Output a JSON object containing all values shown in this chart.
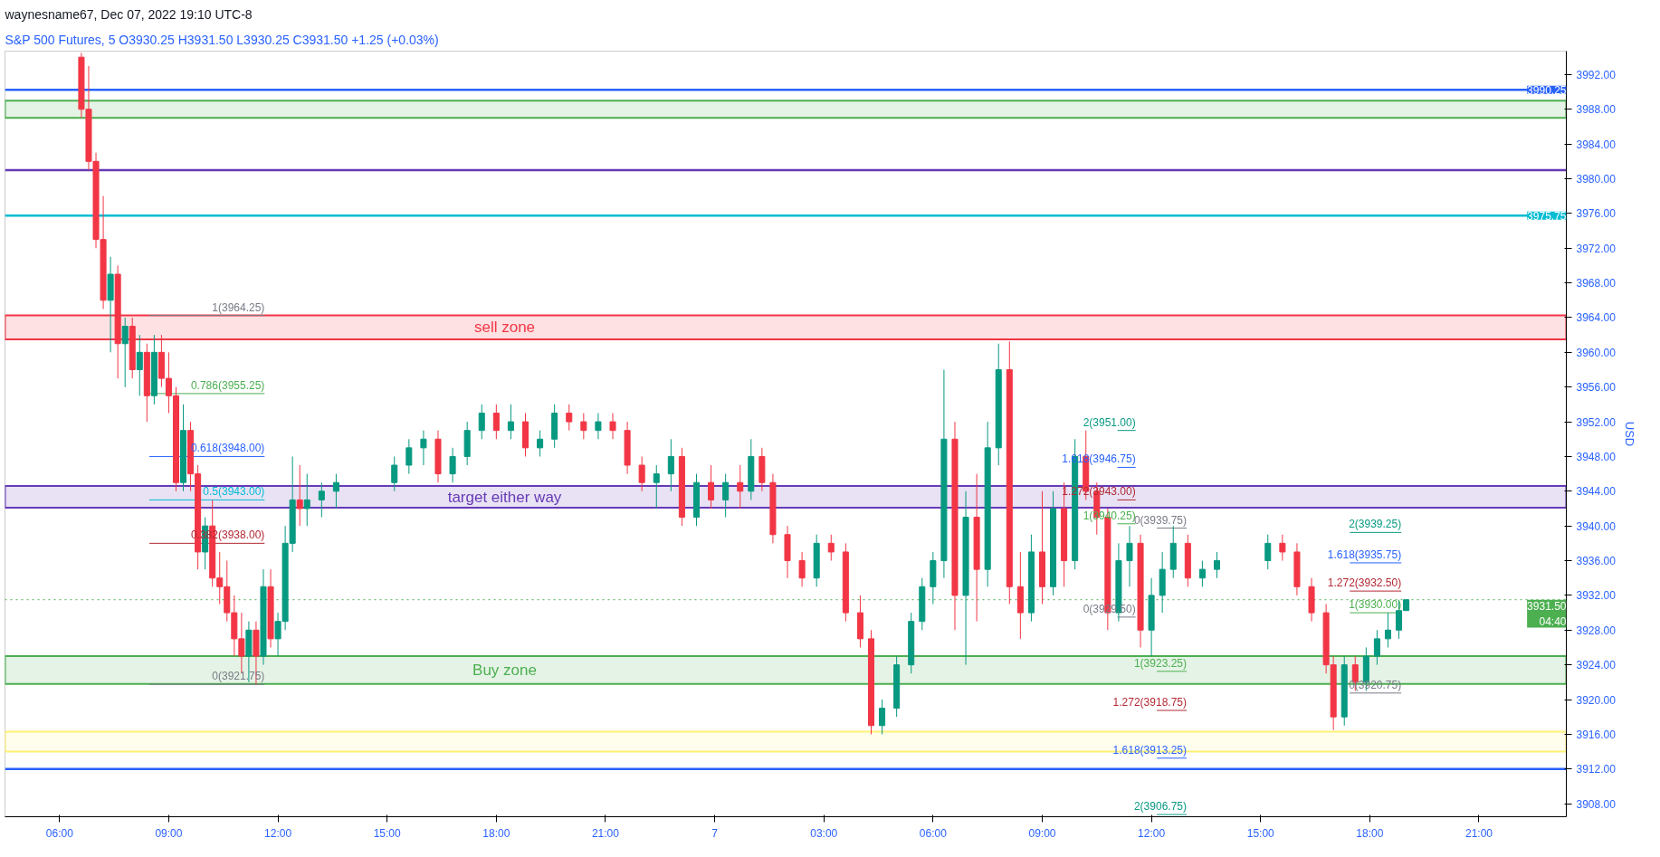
{
  "chart_data": {
    "type": "candlestick",
    "title": "waynesname67, Dec 07, 2022 19:10 UTC-8",
    "subtitle": "S&P 500 Futures, 5  O3930.25  H3931.50  L3930.25  C3931.50  +1.25 (+0.03%)",
    "x": [
      "2022-12-06T06:36",
      "2022-12-06T06:48",
      "2022-12-06T07:00",
      "2022-12-06T07:12",
      "2022-12-06T07:24",
      "2022-12-06T07:36",
      "2022-12-06T07:48",
      "2022-12-06T08:00",
      "2022-12-06T08:12",
      "2022-12-06T08:24",
      "2022-12-06T08:36",
      "2022-12-06T08:48",
      "2022-12-06T09:00",
      "2022-12-06T09:12",
      "2022-12-06T09:24",
      "2022-12-06T09:36",
      "2022-12-06T09:48",
      "2022-12-06T10:00",
      "2022-12-06T10:12",
      "2022-12-06T10:24",
      "2022-12-06T10:36",
      "2022-12-06T10:48",
      "2022-12-06T11:00",
      "2022-12-06T11:12",
      "2022-12-06T11:24",
      "2022-12-06T11:36",
      "2022-12-06T11:48",
      "2022-12-06T12:00",
      "2022-12-06T12:12",
      "2022-12-06T12:24",
      "2022-12-06T12:36",
      "2022-12-06T12:48",
      "2022-12-06T13:12",
      "2022-12-06T13:36",
      "2022-12-06T15:12",
      "2022-12-06T15:36",
      "2022-12-06T16:00",
      "2022-12-06T16:24",
      "2022-12-06T16:48",
      "2022-12-06T17:12",
      "2022-12-06T17:36",
      "2022-12-06T18:00",
      "2022-12-06T18:24",
      "2022-12-06T18:48",
      "2022-12-06T19:12",
      "2022-12-06T19:36",
      "2022-12-06T20:00",
      "2022-12-06T20:24",
      "2022-12-06T20:48",
      "2022-12-06T21:12",
      "2022-12-06T21:36",
      "2022-12-06T22:00",
      "2022-12-06T22:24",
      "2022-12-06T22:48",
      "2022-12-06T23:06",
      "2022-12-06T23:30",
      "2022-12-06T23:54",
      "2022-12-07T00:18",
      "2022-12-07T00:42",
      "2022-12-07T01:00",
      "2022-12-07T01:18",
      "2022-12-07T01:36",
      "2022-12-07T02:00",
      "2022-12-07T02:24",
      "2022-12-07T02:48",
      "2022-12-07T03:12",
      "2022-12-07T03:36",
      "2022-12-07T04:00",
      "2022-12-07T04:18",
      "2022-12-07T04:36",
      "2022-12-07T05:00",
      "2022-12-07T05:24",
      "2022-12-07T05:42",
      "2022-12-07T06:00",
      "2022-12-07T06:18",
      "2022-12-07T06:36",
      "2022-12-07T06:54",
      "2022-12-07T07:12",
      "2022-12-07T07:30",
      "2022-12-07T07:48",
      "2022-12-07T08:06",
      "2022-12-07T08:24",
      "2022-12-07T08:42",
      "2022-12-07T09:00",
      "2022-12-07T09:18",
      "2022-12-07T09:36",
      "2022-12-07T09:54",
      "2022-12-07T10:12",
      "2022-12-07T10:30",
      "2022-12-07T10:48",
      "2022-12-07T11:06",
      "2022-12-07T11:24",
      "2022-12-07T11:42",
      "2022-12-07T12:00",
      "2022-12-07T12:18",
      "2022-12-07T12:36",
      "2022-12-07T13:00",
      "2022-12-07T13:24",
      "2022-12-07T13:48",
      "2022-12-07T15:12",
      "2022-12-07T15:36",
      "2022-12-07T16:00",
      "2022-12-07T16:24",
      "2022-12-07T16:48",
      "2022-12-07T17:00",
      "2022-12-07T17:18",
      "2022-12-07T17:36",
      "2022-12-07T17:54",
      "2022-12-07T18:12",
      "2022-12-07T18:30",
      "2022-12-07T18:48",
      "2022-12-07T19:00"
    ],
    "ohlc": [
      [
        3994,
        3994.5,
        3987,
        3988
      ],
      [
        3988,
        3993,
        3981,
        3982
      ],
      [
        3982,
        3983,
        3972,
        3973
      ],
      [
        3973,
        3978,
        3965,
        3966
      ],
      [
        3966,
        3971,
        3960,
        3969
      ],
      [
        3969,
        3970,
        3957,
        3961
      ],
      [
        3961,
        3964,
        3956,
        3963
      ],
      [
        3963,
        3964,
        3957,
        3958
      ],
      [
        3958,
        3962,
        3955,
        3960
      ],
      [
        3960,
        3961,
        3952,
        3955
      ],
      [
        3955,
        3962,
        3954,
        3960
      ],
      [
        3960,
        3962,
        3956,
        3957
      ],
      [
        3957,
        3960,
        3953,
        3955
      ],
      [
        3955,
        3956,
        3944,
        3945
      ],
      [
        3945,
        3954,
        3944,
        3951
      ],
      [
        3951,
        3952,
        3944,
        3946
      ],
      [
        3946,
        3947,
        3935,
        3937
      ],
      [
        3937,
        3941,
        3935,
        3940
      ],
      [
        3940,
        3943,
        3933,
        3934
      ],
      [
        3934,
        3937,
        3931,
        3933
      ],
      [
        3933,
        3936,
        3929,
        3930
      ],
      [
        3930,
        3932,
        3925,
        3927
      ],
      [
        3927,
        3930,
        3923,
        3925
      ],
      [
        3925,
        3929,
        3922,
        3928
      ],
      [
        3928,
        3929,
        3921.75,
        3925
      ],
      [
        3925,
        3935,
        3924,
        3933
      ],
      [
        3933,
        3935,
        3926,
        3927
      ],
      [
        3927,
        3930,
        3925,
        3929
      ],
      [
        3929,
        3940,
        3928,
        3938
      ],
      [
        3938,
        3948,
        3937,
        3943
      ],
      [
        3943,
        3947,
        3940,
        3942
      ],
      [
        3942,
        3946,
        3940,
        3943
      ],
      [
        3943,
        3945,
        3941,
        3944
      ],
      [
        3944,
        3946,
        3942,
        3945
      ],
      [
        3945,
        3948,
        3944,
        3947
      ],
      [
        3947,
        3950,
        3946,
        3949
      ],
      [
        3949,
        3951,
        3947,
        3950
      ],
      [
        3950,
        3951,
        3945,
        3946
      ],
      [
        3946,
        3949,
        3945,
        3948
      ],
      [
        3948,
        3952,
        3947,
        3951
      ],
      [
        3951,
        3954,
        3950,
        3953
      ],
      [
        3953,
        3954,
        3950,
        3951
      ],
      [
        3951,
        3954,
        3950,
        3952
      ],
      [
        3952,
        3953,
        3948,
        3949
      ],
      [
        3949,
        3951,
        3948,
        3950
      ],
      [
        3950,
        3954,
        3949,
        3953
      ],
      [
        3953,
        3954,
        3951,
        3952
      ],
      [
        3952,
        3953,
        3950,
        3951
      ],
      [
        3951,
        3953,
        3950,
        3952
      ],
      [
        3952,
        3953,
        3950,
        3951
      ],
      [
        3951,
        3952,
        3946,
        3947
      ],
      [
        3947,
        3948,
        3944,
        3945
      ],
      [
        3945,
        3947,
        3942,
        3946
      ],
      [
        3946,
        3950,
        3944,
        3948
      ],
      [
        3948,
        3949,
        3940,
        3941
      ],
      [
        3941,
        3946,
        3940,
        3945
      ],
      [
        3945,
        3947,
        3942,
        3943
      ],
      [
        3943,
        3946,
        3941,
        3945
      ],
      [
        3945,
        3947,
        3942,
        3944
      ],
      [
        3944,
        3950,
        3943,
        3948
      ],
      [
        3948,
        3949,
        3944,
        3945
      ],
      [
        3945,
        3946,
        3938,
        3939
      ],
      [
        3939,
        3940,
        3934,
        3936
      ],
      [
        3936,
        3937,
        3933,
        3934
      ],
      [
        3934,
        3939,
        3933,
        3938
      ],
      [
        3938,
        3939,
        3936,
        3937
      ],
      [
        3937,
        3938,
        3929,
        3930
      ],
      [
        3930,
        3932,
        3926,
        3927
      ],
      [
        3927,
        3928,
        3916,
        3917
      ],
      [
        3917,
        3920,
        3916,
        3919
      ],
      [
        3919,
        3925,
        3918,
        3924
      ],
      [
        3924,
        3930,
        3923,
        3929
      ],
      [
        3929,
        3934,
        3928,
        3933
      ],
      [
        3933,
        3937,
        3931,
        3936
      ],
      [
        3936,
        3958,
        3934,
        3950
      ],
      [
        3950,
        3952,
        3928,
        3932
      ],
      [
        3932,
        3944,
        3924,
        3941
      ],
      [
        3941,
        3946,
        3929,
        3935
      ],
      [
        3935,
        3952,
        3933,
        3949
      ],
      [
        3949,
        3961,
        3947,
        3958
      ],
      [
        3958,
        3961.25,
        3931,
        3933
      ],
      [
        3933,
        3937,
        3927,
        3930
      ],
      [
        3930,
        3939,
        3929,
        3937
      ],
      [
        3937,
        3944,
        3931,
        3933
      ],
      [
        3933,
        3944,
        3932,
        3942
      ],
      [
        3942,
        3945,
        3933,
        3936
      ],
      [
        3936,
        3950,
        3935,
        3948
      ],
      [
        3948,
        3951,
        3943,
        3944
      ],
      [
        3944,
        3945,
        3939,
        3941
      ],
      [
        3941,
        3942,
        3928,
        3930
      ],
      [
        3930,
        3938,
        3929,
        3936
      ],
      [
        3936,
        3940,
        3933,
        3938
      ],
      [
        3938,
        3939,
        3926,
        3928
      ],
      [
        3928,
        3934,
        3925,
        3932
      ],
      [
        3932,
        3937,
        3930,
        3935
      ],
      [
        3935,
        3940,
        3934,
        3938
      ],
      [
        3938,
        3939,
        3933,
        3934
      ],
      [
        3934,
        3936,
        3933,
        3935
      ],
      [
        3935,
        3937,
        3934,
        3936
      ],
      [
        3936,
        3939,
        3935,
        3938
      ],
      [
        3938,
        3939,
        3936,
        3937
      ],
      [
        3937,
        3938,
        3932,
        3933
      ],
      [
        3933,
        3934,
        3929,
        3930
      ],
      [
        3930,
        3931,
        3923,
        3924
      ],
      [
        3924,
        3925,
        3916.5,
        3918
      ],
      [
        3918,
        3925,
        3917,
        3924
      ],
      [
        3924,
        3925,
        3921,
        3922
      ],
      [
        3922,
        3926,
        3921,
        3925
      ],
      [
        3925,
        3928,
        3924,
        3927
      ],
      [
        3927,
        3930,
        3926,
        3928
      ],
      [
        3928,
        3931.5,
        3927,
        3930.25
      ],
      [
        3930.25,
        3931.5,
        3930.25,
        3931.5
      ]
    ],
    "series": [
      {
        "type": "line",
        "name": "1(3964.25)",
        "color": "#787b86",
        "x": [
          "2022-12-06T08:28",
          "2022-12-06T11:38"
        ],
        "values": [
          3964.25,
          3964.25
        ]
      },
      {
        "type": "line",
        "name": "0.786(3955.25)",
        "color": "#4caf50",
        "x": [
          "2022-12-06T08:28",
          "2022-12-06T11:38"
        ],
        "values": [
          3955.25,
          3955.25
        ]
      },
      {
        "type": "line",
        "name": "0.618(3948.00)",
        "color": "#2962ff",
        "x": [
          "2022-12-06T08:28",
          "2022-12-06T11:38"
        ],
        "values": [
          3948,
          3948
        ]
      },
      {
        "type": "line",
        "name": "0.5(3943.00)",
        "color": "#00bcd4",
        "x": [
          "2022-12-06T08:28",
          "2022-12-06T11:38"
        ],
        "values": [
          3943,
          3943
        ]
      },
      {
        "type": "line",
        "name": "0.382(3938.00)",
        "color": "#b22833",
        "x": [
          "2022-12-06T08:28",
          "2022-12-06T11:38"
        ],
        "values": [
          3938,
          3938
        ]
      },
      {
        "type": "line",
        "name": "0(3921.75)",
        "color": "#787b86",
        "x": [
          "2022-12-06T08:28",
          "2022-12-06T11:38"
        ],
        "values": [
          3921.75,
          3921.75
        ]
      },
      {
        "type": "line",
        "name": "2(3951.00)",
        "color": "#089981",
        "x": [
          "2022-12-07T11:04",
          "2022-12-07T11:34"
        ],
        "values": [
          3951,
          3951
        ]
      },
      {
        "type": "line",
        "name": "1.618(3946.75)",
        "color": "#2962ff",
        "x": [
          "2022-12-07T11:04",
          "2022-12-07T11:34"
        ],
        "values": [
          3946.75,
          3946.75
        ]
      },
      {
        "type": "line",
        "name": "1.272(3943.00)",
        "color": "#b22833",
        "x": [
          "2022-12-07T11:04",
          "2022-12-07T11:34"
        ],
        "values": [
          3943,
          3943
        ]
      },
      {
        "type": "line",
        "name": "1(3940.25)",
        "color": "#4caf50",
        "x": [
          "2022-12-07T11:04",
          "2022-12-07T11:34"
        ],
        "values": [
          3940.25,
          3940.25
        ]
      },
      {
        "type": "line",
        "name": "0(3929.50)",
        "color": "#787b86",
        "x": [
          "2022-12-07T11:04",
          "2022-12-07T11:34"
        ],
        "values": [
          3929.5,
          3929.5
        ]
      },
      {
        "type": "line",
        "name": "0(3939.75)",
        "color": "#787b86",
        "x": [
          "2022-12-07T12:09",
          "2022-12-07T12:58"
        ],
        "values": [
          3939.75,
          3939.75
        ]
      },
      {
        "type": "line",
        "name": "1(3923.25)",
        "color": "#4caf50",
        "x": [
          "2022-12-07T12:09",
          "2022-12-07T12:58"
        ],
        "values": [
          3923.25,
          3923.25
        ]
      },
      {
        "type": "line",
        "name": "1.272(3918.75)",
        "color": "#b22833",
        "x": [
          "2022-12-07T12:09",
          "2022-12-07T12:58"
        ],
        "values": [
          3918.75,
          3918.75
        ]
      },
      {
        "type": "line",
        "name": "1.618(3913.25)",
        "color": "#2962ff",
        "x": [
          "2022-12-07T12:09",
          "2022-12-07T12:58"
        ],
        "values": [
          3913.25,
          3913.25
        ]
      },
      {
        "type": "line",
        "name": "2(3906.75)",
        "color": "#089981",
        "x": [
          "2022-12-07T12:09",
          "2022-12-07T12:58"
        ],
        "values": [
          3906.75,
          3906.75
        ]
      },
      {
        "type": "line",
        "name": "2(3939.25)",
        "color": "#089981",
        "x": [
          "2022-12-07T17:27",
          "2022-12-07T18:52"
        ],
        "values": [
          3939.25,
          3939.25
        ]
      },
      {
        "type": "line",
        "name": "1.618(3935.75)",
        "color": "#2962ff",
        "x": [
          "2022-12-07T17:27",
          "2022-12-07T18:52"
        ],
        "values": [
          3935.75,
          3935.75
        ]
      },
      {
        "type": "line",
        "name": "1.272(3932.50)",
        "color": "#b22833",
        "x": [
          "2022-12-07T17:27",
          "2022-12-07T18:52"
        ],
        "values": [
          3932.5,
          3932.5
        ]
      },
      {
        "type": "line",
        "name": "1(3930.00)",
        "color": "#4caf50",
        "x": [
          "2022-12-07T17:27",
          "2022-12-07T18:52"
        ],
        "values": [
          3930,
          3930
        ]
      },
      {
        "type": "line",
        "name": "0(3920.75)",
        "color": "#787b86",
        "x": [
          "2022-12-07T17:27",
          "2022-12-07T18:52"
        ],
        "values": [
          3920.75,
          3920.75
        ]
      }
    ],
    "xlim": [
      "2022-12-06T04:30",
      "2022-12-07T23:24"
    ],
    "xticks": [
      {
        "value": "2022-12-06T06:00",
        "label": "06:00"
      },
      {
        "value": "2022-12-06T09:00",
        "label": "09:00"
      },
      {
        "value": "2022-12-06T12:00",
        "label": "12:00"
      },
      {
        "value": "2022-12-06T15:00",
        "label": "15:00"
      },
      {
        "value": "2022-12-06T18:00",
        "label": "18:00"
      },
      {
        "value": "2022-12-06T21:00",
        "label": "21:00"
      },
      {
        "value": "2022-12-07T00:00",
        "label": "7"
      },
      {
        "value": "2022-12-07T03:00",
        "label": "03:00"
      },
      {
        "value": "2022-12-07T06:00",
        "label": "06:00"
      },
      {
        "value": "2022-12-07T09:00",
        "label": "09:00"
      },
      {
        "value": "2022-12-07T12:00",
        "label": "12:00"
      },
      {
        "value": "2022-12-07T15:00",
        "label": "15:00"
      },
      {
        "value": "2022-12-07T18:00",
        "label": "18:00"
      },
      {
        "value": "2022-12-07T21:00",
        "label": "21:00"
      }
    ],
    "ylim": [
      3906.5,
      3994.7
    ],
    "yticks": [
      {
        "value": 3908,
        "label": "3908.00"
      },
      {
        "value": 3912,
        "label": "3912.00"
      },
      {
        "value": 3916,
        "label": "3916.00"
      },
      {
        "value": 3920,
        "label": "3920.00"
      },
      {
        "value": 3924,
        "label": "3924.00"
      },
      {
        "value": 3928,
        "label": "3928.00"
      },
      {
        "value": 3932,
        "label": "3932.00"
      },
      {
        "value": 3936,
        "label": "3936.00"
      },
      {
        "value": 3940,
        "label": "3940.00"
      },
      {
        "value": 3944,
        "label": "3944.00"
      },
      {
        "value": 3948,
        "label": "3948.00"
      },
      {
        "value": 3952,
        "label": "3952.00"
      },
      {
        "value": 3956,
        "label": "3956.00"
      },
      {
        "value": 3960,
        "label": "3960.00"
      },
      {
        "value": 3964,
        "label": "3964.00"
      },
      {
        "value": 3968,
        "label": "3968.00"
      },
      {
        "value": 3972,
        "label": "3972.00"
      },
      {
        "value": 3976,
        "label": "3976.00"
      },
      {
        "value": 3980,
        "label": "3980.00"
      },
      {
        "value": 3984,
        "label": "3984.00"
      },
      {
        "value": 3988,
        "label": "3988.00"
      },
      {
        "value": 3992,
        "label": "3992.00"
      }
    ],
    "grid": false,
    "ylabel": "USD",
    "ref_lines": [
      {
        "axis": "y",
        "value": 3990.25,
        "label": "3990.25",
        "color": "#2962ff"
      },
      {
        "axis": "y",
        "value": 3981,
        "color": "#673ab7"
      },
      {
        "axis": "y",
        "value": 3975.75,
        "label": "3975.75",
        "color": "#00bcd4"
      },
      {
        "axis": "y",
        "value": 3931.5,
        "label": "3931.50\n04:40",
        "color": "#4caf50",
        "line_style": "dotted"
      },
      {
        "axis": "y",
        "value": 3912,
        "color": "#2962ff"
      }
    ],
    "bands": [
      {
        "axis": "y",
        "from": 3987,
        "to": 3989,
        "color": "#4caf50"
      },
      {
        "axis": "y",
        "from": 3961.5,
        "to": 3964.25,
        "label": "sell zone",
        "color": "#f23645"
      },
      {
        "axis": "y",
        "from": 3942.1,
        "to": 3944.6,
        "label": "target either way",
        "color": "#673ab7"
      },
      {
        "axis": "y",
        "from": 3921.8,
        "to": 3925,
        "label": "Buy zone",
        "color": "#4caf50"
      },
      {
        "axis": "y",
        "from": 3914,
        "to": 3916.3,
        "color": "#fff176"
      }
    ]
  }
}
